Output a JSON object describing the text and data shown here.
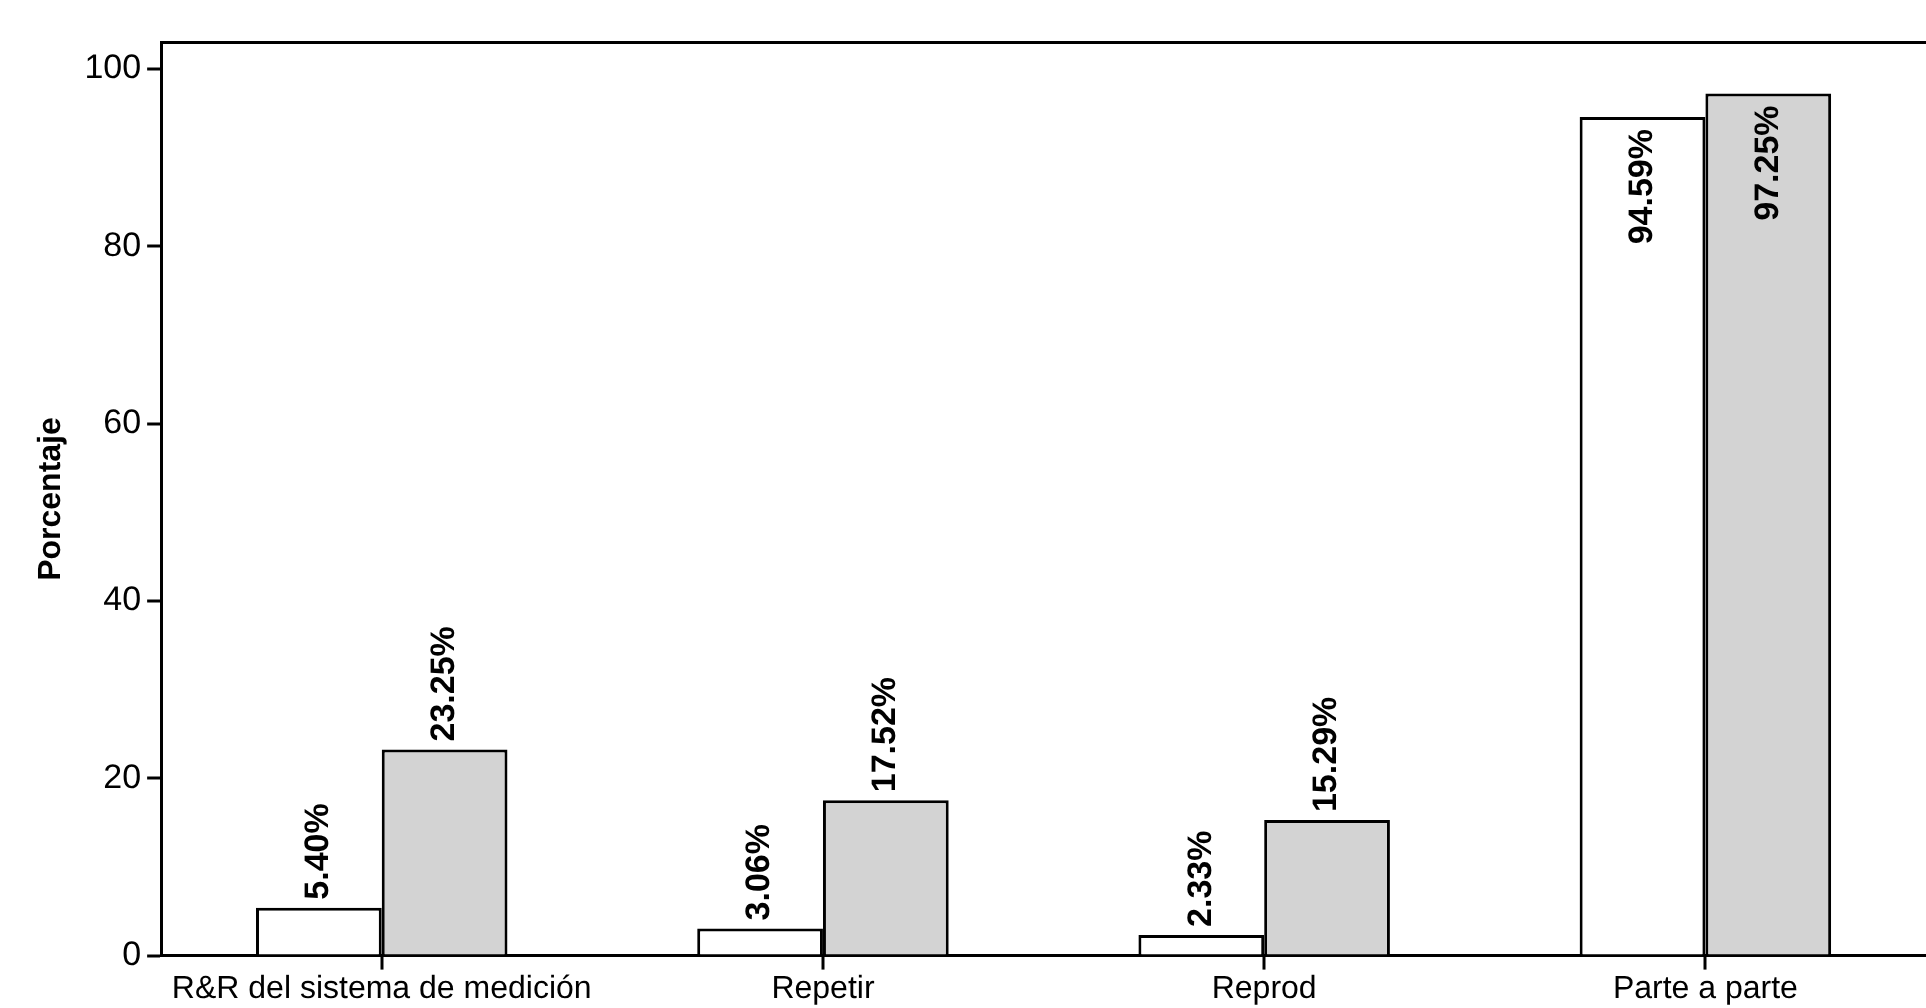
{
  "chart_data": {
    "type": "bar",
    "ylabel": "Porcentaje",
    "categories": [
      "R&R del sistema de medición",
      "Repetir",
      "Reprod",
      "Parte a parte"
    ],
    "series": [
      {
        "color": "#ffffff",
        "values": [
          5.4,
          3.06,
          2.33,
          94.59
        ],
        "value_labels": [
          "5.40%",
          "3.06%",
          "2.33%",
          "94.59%"
        ]
      },
      {
        "color": "#d3d3d3",
        "values": [
          23.25,
          17.52,
          15.29,
          97.25
        ],
        "value_labels": [
          "23.25%",
          "17.52%",
          "15.29%",
          "97.25%"
        ]
      }
    ],
    "ylim": [
      0,
      103
    ],
    "yticks": [
      0,
      20,
      40,
      60,
      80,
      100
    ],
    "grid": false,
    "legend": false
  }
}
